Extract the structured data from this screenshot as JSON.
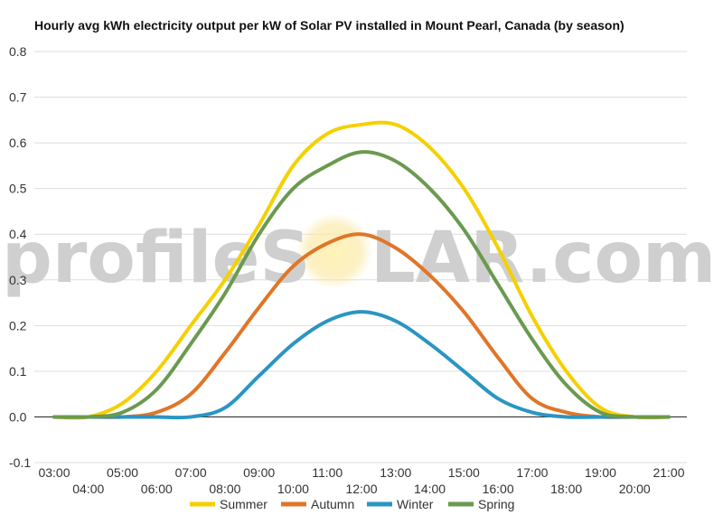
{
  "chart_data": {
    "type": "line",
    "title": "Hourly avg kWh electricity output per kW of Solar PV installed in Mount Pearl, Canada (by season)",
    "xlabel": "",
    "ylabel": "",
    "watermark": {
      "left": "profileS",
      "right": "LAR.com"
    },
    "x": [
      "03:00",
      "04:00",
      "05:00",
      "06:00",
      "07:00",
      "08:00",
      "09:00",
      "10:00",
      "11:00",
      "12:00",
      "13:00",
      "14:00",
      "15:00",
      "16:00",
      "17:00",
      "18:00",
      "19:00",
      "20:00",
      "21:00"
    ],
    "x_ticks_row1": [
      "03:00",
      "05:00",
      "07:00",
      "09:00",
      "11:00",
      "13:00",
      "15:00",
      "17:00",
      "19:00",
      "21:00"
    ],
    "x_ticks_row2": [
      "04:00",
      "06:00",
      "08:00",
      "10:00",
      "12:00",
      "14:00",
      "16:00",
      "18:00",
      "20:00"
    ],
    "ylim": [
      -0.1,
      0.8
    ],
    "yticks": [
      "0.8",
      "0.7",
      "0.6",
      "0.5",
      "0.4",
      "0.3",
      "0.2",
      "0.1",
      "0.0",
      "-0.1"
    ],
    "grid": true,
    "legend_position": "bottom",
    "series": [
      {
        "name": "Summer",
        "color": "#f5d000",
        "values": [
          0.0,
          0.0,
          0.03,
          0.1,
          0.2,
          0.3,
          0.42,
          0.55,
          0.62,
          0.64,
          0.64,
          0.59,
          0.5,
          0.37,
          0.22,
          0.1,
          0.02,
          0.0,
          0.0
        ]
      },
      {
        "name": "Autumn",
        "color": "#e07628",
        "values": [
          0.0,
          0.0,
          0.0,
          0.01,
          0.05,
          0.14,
          0.24,
          0.33,
          0.38,
          0.4,
          0.37,
          0.31,
          0.23,
          0.13,
          0.04,
          0.01,
          0.0,
          0.0,
          0.0
        ]
      },
      {
        "name": "Winter",
        "color": "#2b95c2",
        "values": [
          0.0,
          0.0,
          0.0,
          0.0,
          0.0,
          0.02,
          0.09,
          0.16,
          0.21,
          0.23,
          0.21,
          0.16,
          0.1,
          0.04,
          0.01,
          0.0,
          0.0,
          0.0,
          0.0
        ]
      },
      {
        "name": "Spring",
        "color": "#6a9a4f",
        "values": [
          0.0,
          0.0,
          0.01,
          0.06,
          0.16,
          0.27,
          0.4,
          0.5,
          0.55,
          0.58,
          0.56,
          0.5,
          0.41,
          0.29,
          0.17,
          0.07,
          0.01,
          0.0,
          0.0
        ]
      }
    ]
  }
}
